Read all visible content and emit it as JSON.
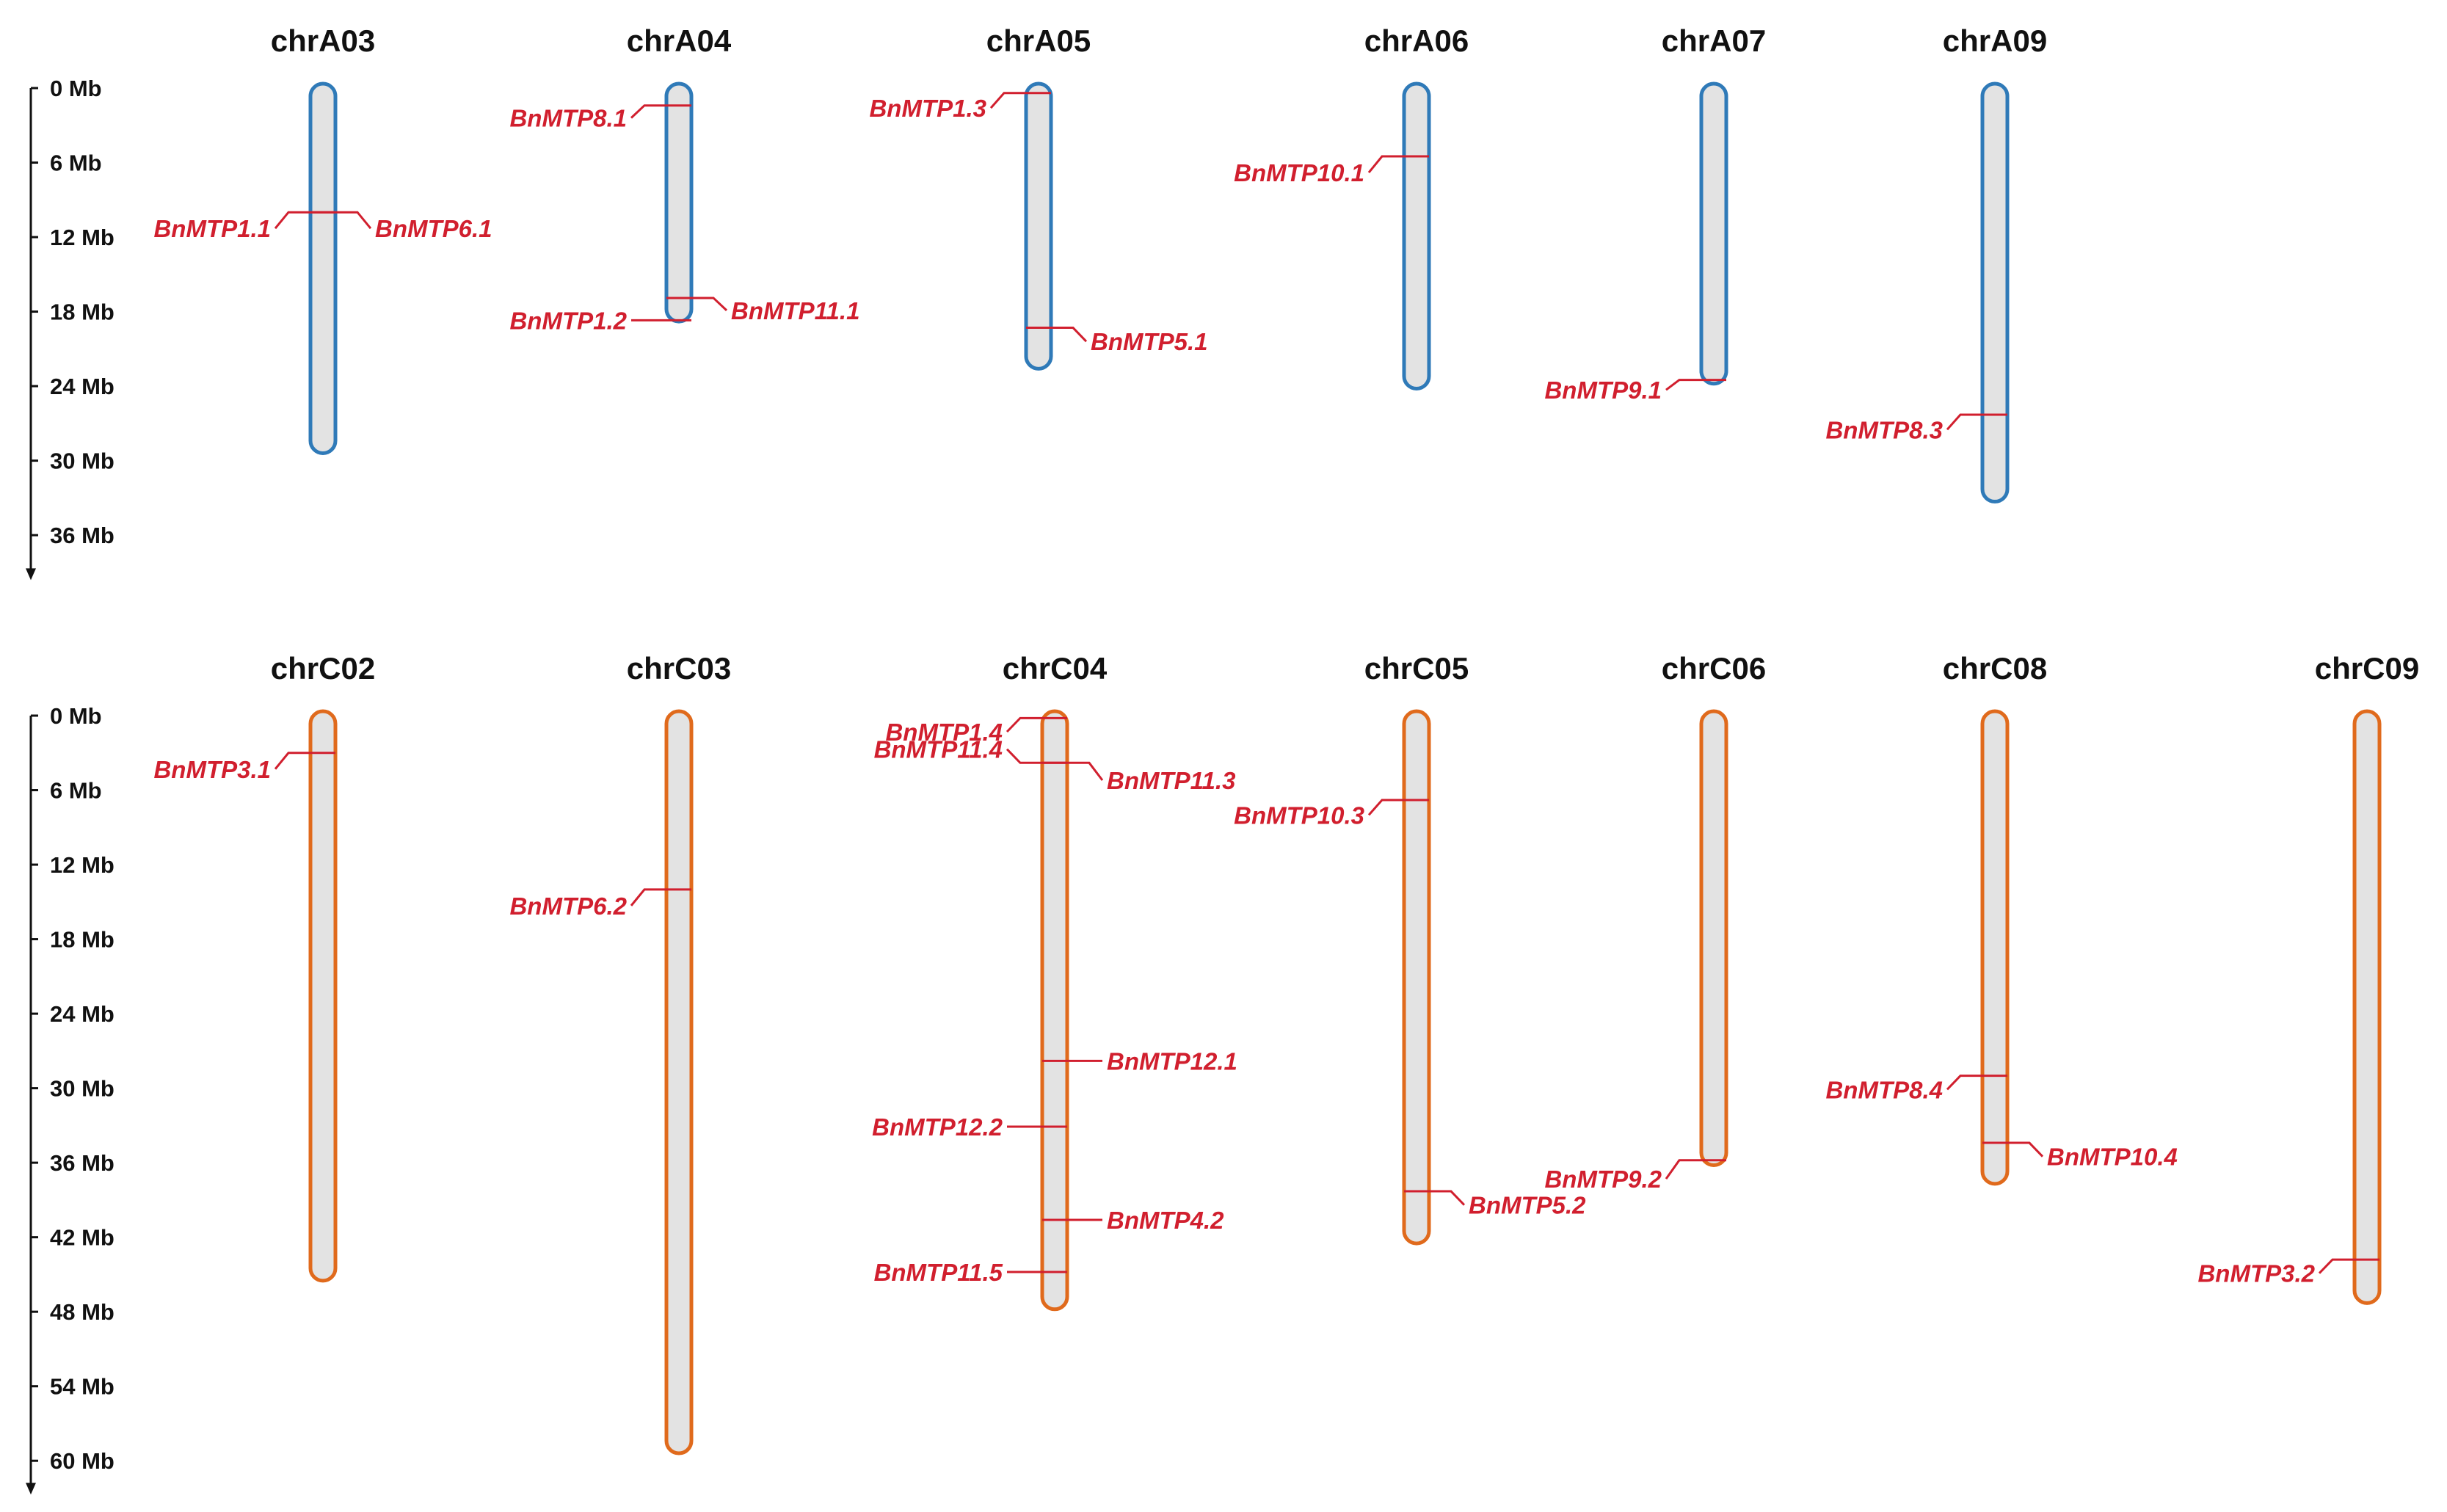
{
  "colors": {
    "a_outline": "#2f7ab8",
    "c_outline": "#e06a1c",
    "fill": "#e3e3e3",
    "gene": "#d11f2e",
    "axis": "#111111"
  },
  "panels": [
    {
      "id": "A",
      "outline": "a_outline",
      "axis_ticks": [
        "0 Mb",
        "6 Mb",
        "12 Mb",
        "18 Mb",
        "24 Mb",
        "30 Mb",
        "36 Mb"
      ],
      "axis_max_mb": 39.5,
      "chromosomes": [
        {
          "name": "chrA03",
          "length_mb": 29.4,
          "genes": [
            {
              "label": "BnMTP1.1",
              "pos_mb": 10.0,
              "side": "left",
              "label_mb": 11.3
            },
            {
              "label": "BnMTP6.1",
              "pos_mb": 10.0,
              "side": "right",
              "label_mb": 11.3
            }
          ]
        },
        {
          "name": "chrA04",
          "length_mb": 18.8,
          "genes": [
            {
              "label": "BnMTP8.1",
              "pos_mb": 1.4,
              "side": "left",
              "label_mb": 2.4
            },
            {
              "label": "BnMTP1.2",
              "pos_mb": 18.7,
              "side": "left",
              "label_mb": 18.7
            },
            {
              "label": "BnMTP11.1",
              "pos_mb": 16.9,
              "side": "right",
              "label_mb": 17.9
            }
          ]
        },
        {
          "name": "chrA05",
          "length_mb": 22.6,
          "genes": [
            {
              "label": "BnMTP1.3",
              "pos_mb": 0.4,
              "side": "left",
              "label_mb": 1.6
            },
            {
              "label": "BnMTP5.1",
              "pos_mb": 19.3,
              "side": "right",
              "label_mb": 20.4
            }
          ]
        },
        {
          "name": "chrA06",
          "length_mb": 24.2,
          "genes": [
            {
              "label": "BnMTP10.1",
              "pos_mb": 5.5,
              "side": "left",
              "label_mb": 6.8
            }
          ]
        },
        {
          "name": "chrA07",
          "length_mb": 23.8,
          "genes": [
            {
              "label": "BnMTP9.1",
              "pos_mb": 23.5,
              "side": "left",
              "label_mb": 24.3
            }
          ]
        },
        {
          "name": "chrA09",
          "length_mb": 33.3,
          "genes": [
            {
              "label": "BnMTP8.3",
              "pos_mb": 26.3,
              "side": "left",
              "label_mb": 27.5
            }
          ]
        }
      ]
    },
    {
      "id": "C",
      "outline": "c_outline",
      "axis_ticks": [
        "0 Mb",
        "6 Mb",
        "12 Mb",
        "18 Mb",
        "24 Mb",
        "30 Mb",
        "36 Mb",
        "42 Mb",
        "48 Mb",
        "54 Mb",
        "60 Mb"
      ],
      "axis_max_mb": 62.6,
      "chromosomes": [
        {
          "name": "chrC02",
          "length_mb": 45.5,
          "genes": [
            {
              "label": "BnMTP3.1",
              "pos_mb": 3.0,
              "side": "left",
              "label_mb": 4.3
            }
          ]
        },
        {
          "name": "chrC03",
          "length_mb": 59.4,
          "genes": [
            {
              "label": "BnMTP6.2",
              "pos_mb": 14.0,
              "side": "left",
              "label_mb": 15.3
            }
          ]
        },
        {
          "name": "chrC04",
          "length_mb": 47.8,
          "genes": [
            {
              "label": "BnMTP1.4",
              "pos_mb": 0.2,
              "side": "left",
              "label_mb": 1.3
            },
            {
              "label": "BnMTP11.4",
              "pos_mb": 3.8,
              "side": "left",
              "label_mb": 2.7
            },
            {
              "label": "BnMTP11.3",
              "pos_mb": 3.8,
              "side": "right",
              "label_mb": 5.2
            },
            {
              "label": "BnMTP12.1",
              "pos_mb": 27.8,
              "side": "right",
              "label_mb": 27.8
            },
            {
              "label": "BnMTP12.2",
              "pos_mb": 33.1,
              "side": "left",
              "label_mb": 33.1
            },
            {
              "label": "BnMTP4.2",
              "pos_mb": 40.6,
              "side": "right",
              "label_mb": 40.6
            },
            {
              "label": "BnMTP11.5",
              "pos_mb": 44.8,
              "side": "left",
              "label_mb": 44.8
            }
          ]
        },
        {
          "name": "chrC05",
          "length_mb": 42.5,
          "genes": [
            {
              "label": "BnMTP10.3",
              "pos_mb": 6.8,
              "side": "left",
              "label_mb": 8.0
            },
            {
              "label": "BnMTP5.2",
              "pos_mb": 38.3,
              "side": "right",
              "label_mb": 39.4
            }
          ]
        },
        {
          "name": "chrC06",
          "length_mb": 36.2,
          "genes": [
            {
              "label": "BnMTP9.2",
              "pos_mb": 35.8,
              "side": "left",
              "label_mb": 37.3
            }
          ]
        },
        {
          "name": "chrC08",
          "length_mb": 37.7,
          "genes": [
            {
              "label": "BnMTP8.4",
              "pos_mb": 29.0,
              "side": "left",
              "label_mb": 30.1
            },
            {
              "label": "BnMTP10.4",
              "pos_mb": 34.4,
              "side": "right",
              "label_mb": 35.5
            }
          ]
        },
        {
          "name": "chrC09",
          "length_mb": 47.3,
          "genes": [
            {
              "label": "BnMTP3.2",
              "pos_mb": 43.8,
              "side": "left",
              "label_mb": 44.9
            }
          ]
        }
      ]
    }
  ]
}
